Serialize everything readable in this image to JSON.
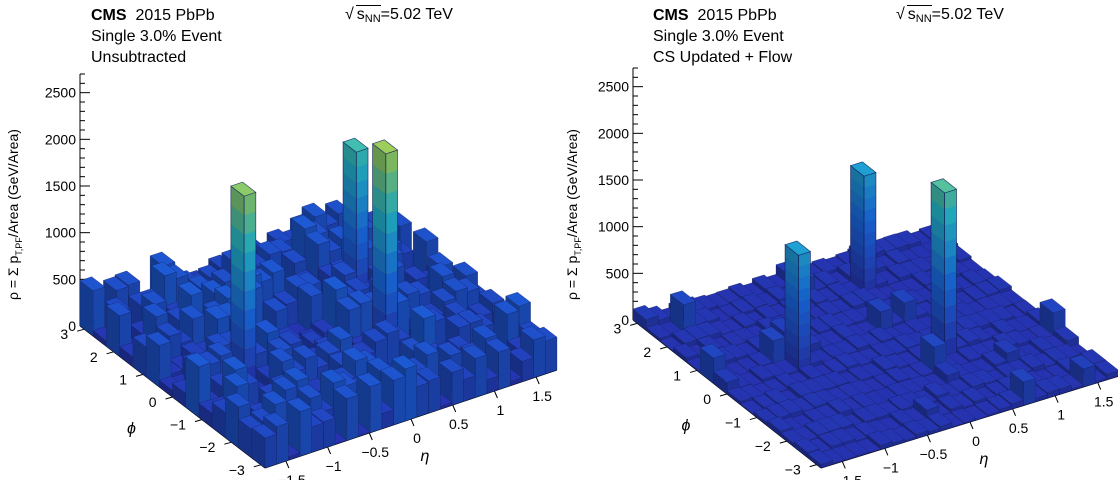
{
  "chart_data": [
    {
      "type": "lego3d",
      "experiment": "CMS",
      "dataset": "2015 PbPb",
      "event": "Single 3.0% Event",
      "subtitle": "Unsubtracted",
      "energy_prefix": "s",
      "energy_sub": "NN",
      "energy_value": "=5.02 TeV",
      "zlabel_prefix": "ρ = Σ p",
      "zlabel_sub": "T,PF",
      "zlabel_suffix": "/Area (GeV/Area)",
      "xlabel": "η",
      "ylabel": "ϕ",
      "z_ticks": [
        "0",
        "500",
        "1000",
        "1500",
        "2000",
        "2500"
      ],
      "eta_ticks": [
        "−1.5",
        "−1",
        "−0.5",
        "0",
        "0.5",
        "1",
        "1.5"
      ],
      "phi_ticks": [
        "−3",
        "−2",
        "−1",
        "0",
        "1",
        "2",
        "3"
      ],
      "zlim": [
        0,
        2700
      ],
      "baseline_range": [
        0,
        560
      ],
      "spikes": [
        {
          "eta": -0.95,
          "phi": -0.4,
          "value": 2050
        },
        {
          "eta": 0.85,
          "phi": 1.3,
          "value": 1650
        },
        {
          "eta": 0.6,
          "phi": -0.7,
          "value": 2150
        }
      ]
    },
    {
      "type": "lego3d",
      "experiment": "CMS",
      "dataset": "2015 PbPb",
      "event": "Single 3.0% Event",
      "subtitle": "CS Updated + Flow",
      "energy_prefix": "s",
      "energy_sub": "NN",
      "energy_value": "=5.02 TeV",
      "zlabel_prefix": "ρ = Σ p",
      "zlabel_sub": "T,PF",
      "zlabel_suffix": "/Area (GeV/Area)",
      "xlabel": "η",
      "ylabel": "ϕ",
      "z_ticks": [
        "0",
        "500",
        "1000",
        "1500",
        "2000",
        "2500"
      ],
      "eta_ticks": [
        "−1.5",
        "−1",
        "−0.5",
        "0",
        "0.5",
        "1",
        "1.5"
      ],
      "phi_ticks": [
        "−3",
        "−2",
        "−1",
        "0",
        "1",
        "2",
        "3"
      ],
      "zlim": [
        0,
        2700
      ],
      "baseline_range": [
        0,
        60
      ],
      "spikes": [
        {
          "eta": -0.9,
          "phi": 0.3,
          "value": 1250
        },
        {
          "eta": 0.55,
          "phi": 2.0,
          "value": 1250
        },
        {
          "eta": 0.55,
          "phi": -0.5,
          "value": 1750
        }
      ]
    }
  ]
}
